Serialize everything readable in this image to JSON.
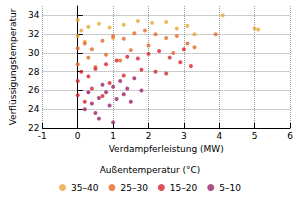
{
  "chart_data": {
    "type": "scatter",
    "x_label": "Verdampferleistung (MW)",
    "y_label": "Verflüssigungstemperatur",
    "legend_title": "Außentemperatur (°C)",
    "xlim": [
      -1,
      6
    ],
    "xticks": [
      -1,
      0,
      1,
      2,
      3,
      4,
      5,
      6
    ],
    "ylim": [
      22,
      35
    ],
    "yticks": [
      22,
      24,
      26,
      28,
      30,
      32,
      34
    ],
    "grid": true,
    "legend": "bottom",
    "marker": "circle",
    "series": [
      {
        "name": "35–40",
        "color": "#e8a838",
        "values": [
          [
            0.0,
            33.5
          ],
          [
            0.1,
            32.4
          ],
          [
            0.0,
            31.8
          ],
          [
            0.3,
            32.8
          ],
          [
            0.6,
            33.1
          ],
          [
            0.9,
            32.7
          ],
          [
            1.3,
            33.0
          ],
          [
            1.7,
            33.4
          ],
          [
            2.1,
            33.2
          ],
          [
            2.5,
            33.3
          ],
          [
            2.8,
            32.6
          ],
          [
            3.1,
            32.9
          ],
          [
            4.1,
            34.0
          ],
          [
            5.0,
            32.6
          ],
          [
            5.1,
            32.5
          ],
          [
            0.2,
            31.2
          ],
          [
            1.0,
            31.6
          ],
          [
            3.3,
            32.0
          ]
        ]
      },
      {
        "name": "25–30",
        "color": "#e4682c",
        "values": [
          [
            0.0,
            30.5
          ],
          [
            0.2,
            31.0
          ],
          [
            0.4,
            30.4
          ],
          [
            0.7,
            31.3
          ],
          [
            1.0,
            31.8
          ],
          [
            1.3,
            31.5
          ],
          [
            1.6,
            32.1
          ],
          [
            1.9,
            32.4
          ],
          [
            2.2,
            32.0
          ],
          [
            2.5,
            31.6
          ],
          [
            2.8,
            31.8
          ],
          [
            3.1,
            31.0
          ],
          [
            3.3,
            30.6
          ],
          [
            0.3,
            29.5
          ],
          [
            0.8,
            29.8
          ],
          [
            1.5,
            30.3
          ],
          [
            2.0,
            30.8
          ],
          [
            2.7,
            30.0
          ],
          [
            0.0,
            28.8
          ],
          [
            3.9,
            32.0
          ],
          [
            0.5,
            28.5
          ],
          [
            1.2,
            29.2
          ]
        ]
      },
      {
        "name": "15–20",
        "color": "#d4242e",
        "values": [
          [
            0.0,
            27.0
          ],
          [
            0.1,
            28.0
          ],
          [
            0.3,
            27.5
          ],
          [
            0.5,
            28.3
          ],
          [
            0.8,
            28.8
          ],
          [
            1.1,
            29.2
          ],
          [
            1.4,
            29.6
          ],
          [
            1.7,
            29.4
          ],
          [
            2.0,
            29.9
          ],
          [
            2.3,
            30.2
          ],
          [
            2.6,
            29.5
          ],
          [
            2.9,
            29.0
          ],
          [
            3.2,
            28.6
          ],
          [
            0.4,
            26.2
          ],
          [
            0.9,
            26.8
          ],
          [
            1.3,
            27.6
          ],
          [
            1.8,
            28.2
          ],
          [
            2.2,
            28.0
          ],
          [
            0.0,
            25.5
          ],
          [
            0.2,
            24.8
          ],
          [
            0.7,
            25.4
          ],
          [
            2.5,
            27.8
          ],
          [
            3.0,
            30.4
          ]
        ]
      },
      {
        "name": "5–10",
        "color": "#9c2068",
        "values": [
          [
            0.2,
            24.0
          ],
          [
            0.4,
            24.6
          ],
          [
            0.6,
            25.2
          ],
          [
            0.8,
            25.8
          ],
          [
            1.0,
            26.4
          ],
          [
            1.2,
            27.0
          ],
          [
            1.4,
            26.2
          ],
          [
            0.5,
            23.6
          ],
          [
            0.9,
            24.4
          ],
          [
            1.1,
            25.1
          ],
          [
            1.3,
            25.6
          ],
          [
            0.7,
            26.6
          ],
          [
            1.6,
            27.3
          ],
          [
            0.3,
            25.8
          ],
          [
            1.5,
            24.8
          ],
          [
            1.8,
            26.0
          ],
          [
            0.6,
            23.0
          ],
          [
            1.0,
            22.6
          ]
        ]
      }
    ]
  }
}
